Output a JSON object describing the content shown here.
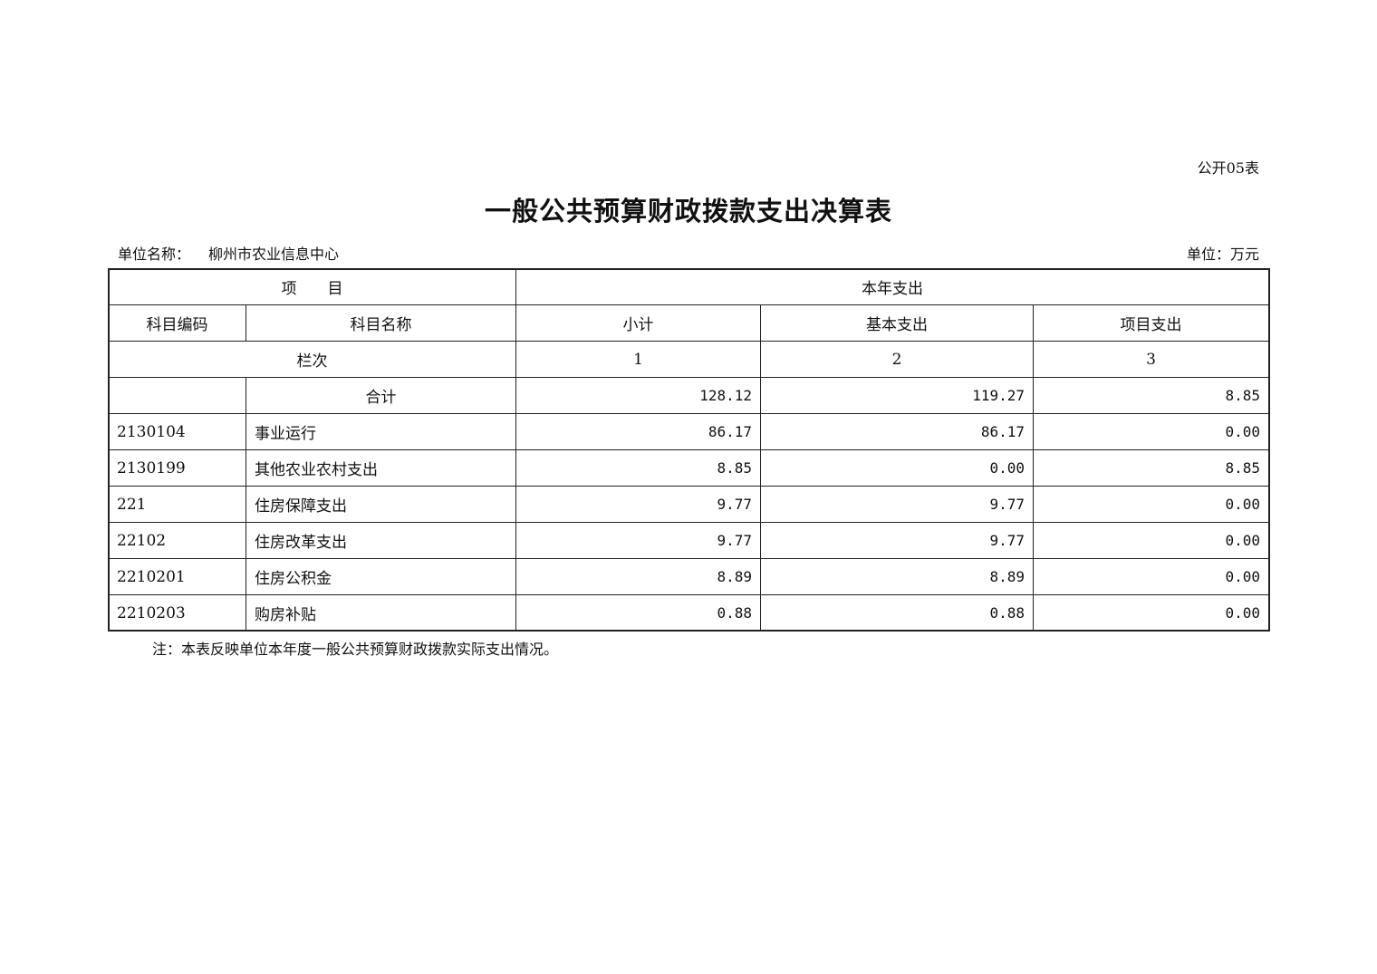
{
  "form_no": "公开05表",
  "title": "一般公共预算财政拨款支出决算表",
  "unit_name_label": "单位名称：",
  "unit_name": "柳州市农业信息中心",
  "unit": "单位：万元",
  "header": {
    "item": "项　　目",
    "current_year": "本年支出",
    "code": "科目编码",
    "name": "科目名称",
    "subtotal": "小计",
    "basic": "基本支出",
    "project": "项目支出",
    "column_index_label": "栏次",
    "col1": "1",
    "col2": "2",
    "col3": "3"
  },
  "total": {
    "label": "合计",
    "subtotal": "128.12",
    "basic": "119.27",
    "project": "8.85"
  },
  "rows": [
    {
      "code": "2130104",
      "name": "事业运行",
      "subtotal": "86.17",
      "basic": "86.17",
      "project": "0.00"
    },
    {
      "code": "2130199",
      "name": "其他农业农村支出",
      "subtotal": "8.85",
      "basic": "0.00",
      "project": "8.85"
    },
    {
      "code": "221",
      "name": "住房保障支出",
      "subtotal": "9.77",
      "basic": "9.77",
      "project": "0.00"
    },
    {
      "code": "22102",
      "name": "住房改革支出",
      "subtotal": "9.77",
      "basic": "9.77",
      "project": "0.00"
    },
    {
      "code": "2210201",
      "name": "住房公积金",
      "subtotal": "8.89",
      "basic": "8.89",
      "project": "0.00"
    },
    {
      "code": "2210203",
      "name": "购房补贴",
      "subtotal": "0.88",
      "basic": "0.88",
      "project": "0.00"
    }
  ],
  "note": "注：本表反映单位本年度一般公共预算财政拨款实际支出情况。"
}
